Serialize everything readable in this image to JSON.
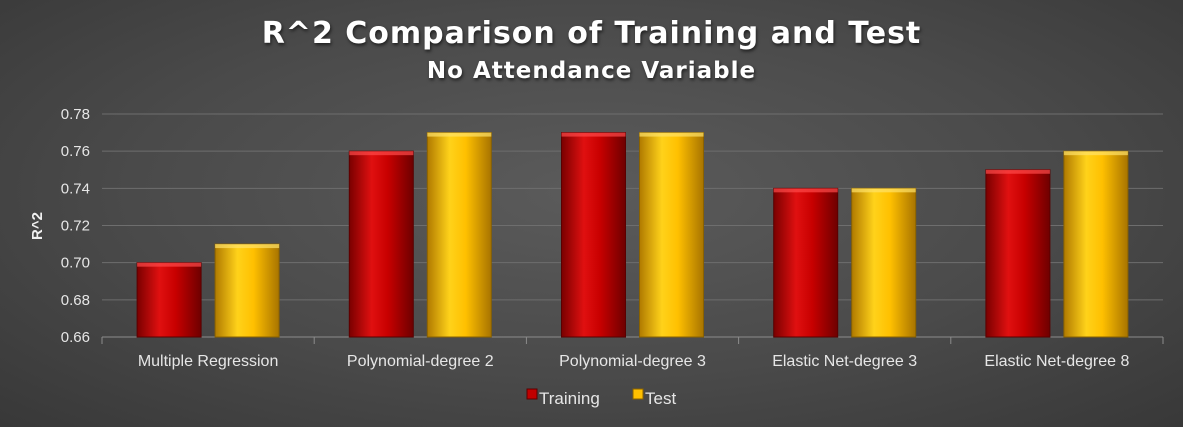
{
  "chart_data": {
    "type": "bar",
    "title": "R^2 Comparison of Training and Test",
    "subtitle": "No Attendance Variable",
    "xlabel": "",
    "ylabel": "R^2",
    "ylim": [
      0.66,
      0.78
    ],
    "yticks": [
      "0.66",
      "0.68",
      "0.70",
      "0.72",
      "0.74",
      "0.76",
      "0.78"
    ],
    "grid": true,
    "legend_position": "bottom",
    "categories": [
      "Multiple Regression",
      "Polynomial-degree 2",
      "Polynomial-degree 3",
      "Elastic Net-degree 3",
      "Elastic Net-degree 8"
    ],
    "series": [
      {
        "name": "Training",
        "values": [
          0.7,
          0.76,
          0.77,
          0.74,
          0.75
        ],
        "color": "#c00000"
      },
      {
        "name": "Test",
        "values": [
          0.71,
          0.77,
          0.77,
          0.74,
          0.76
        ],
        "color": "#ffc000"
      }
    ]
  }
}
